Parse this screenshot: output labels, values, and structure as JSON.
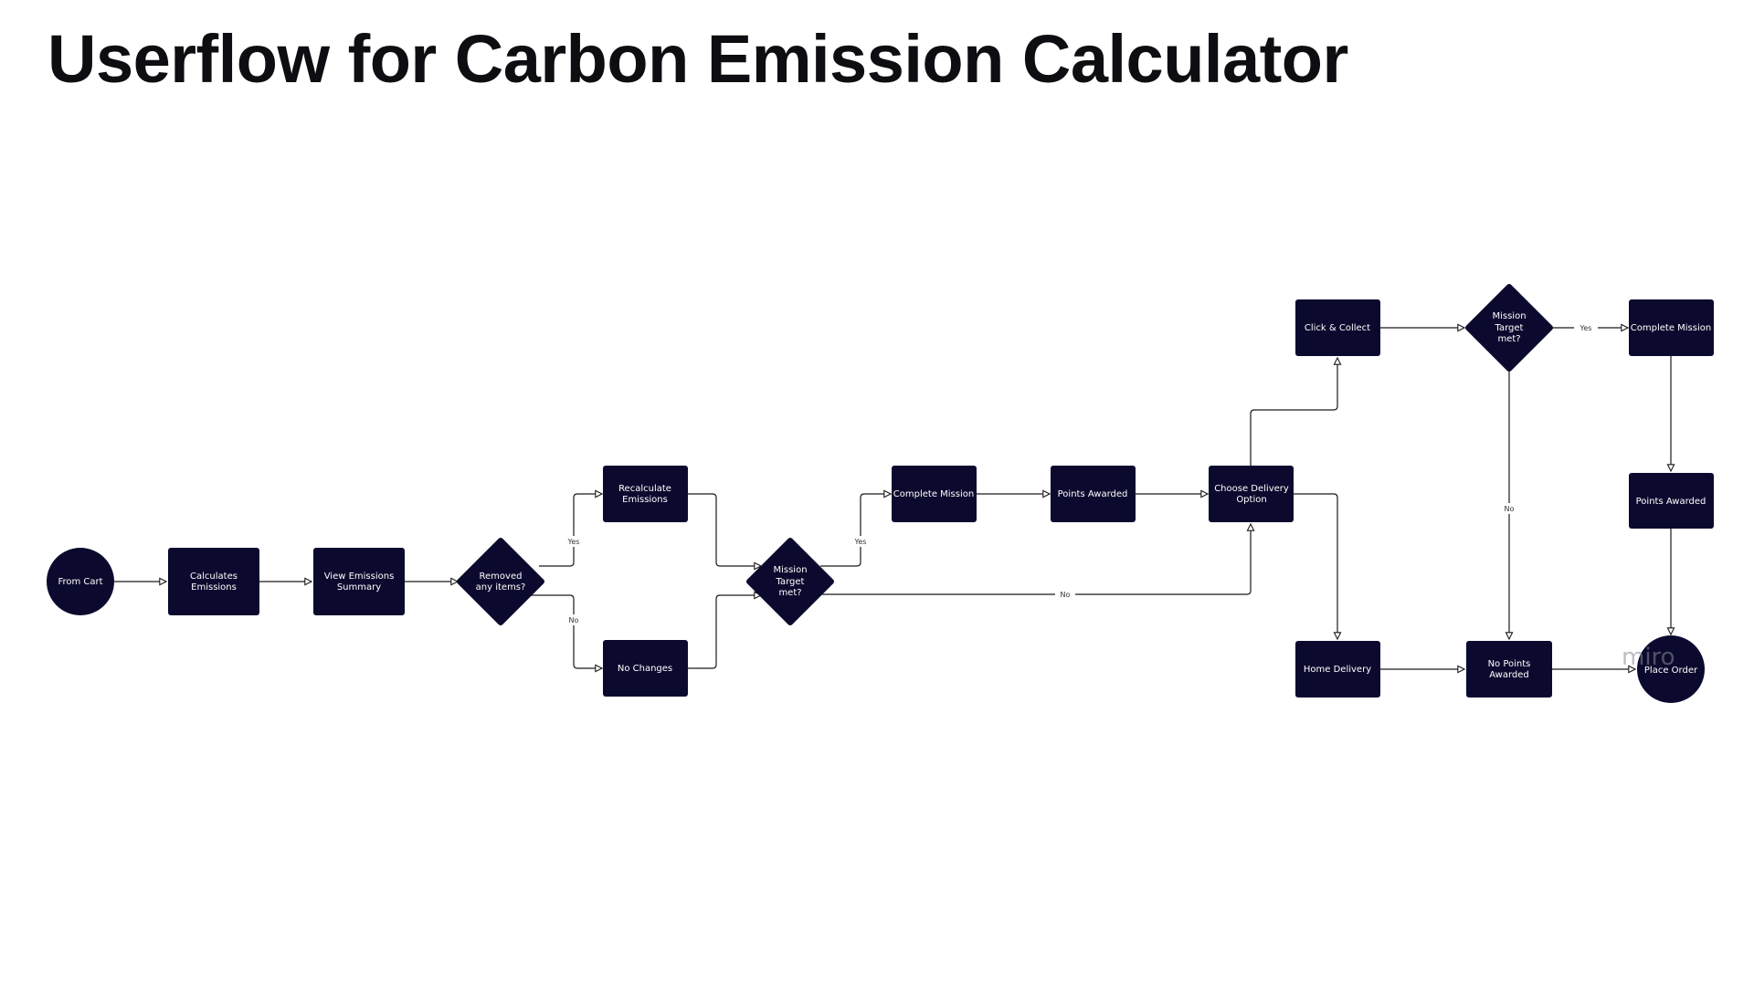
{
  "title": "Userflow for Carbon Emission Calculator",
  "nodes": {
    "from_cart": {
      "lines": [
        "From Cart"
      ]
    },
    "calculates": {
      "lines": [
        "Calculates",
        "Emissions"
      ]
    },
    "view_summary": {
      "lines": [
        "View Emissions",
        "Summary"
      ]
    },
    "removed_items": {
      "lines": [
        "Removed",
        "any items?"
      ]
    },
    "recalculate": {
      "lines": [
        "Recalculate",
        "Emissions"
      ]
    },
    "no_changes": {
      "lines": [
        "No Changes"
      ]
    },
    "target_1": {
      "lines": [
        "Mission",
        "Target",
        "met?"
      ]
    },
    "complete_1": {
      "lines": [
        "Complete Mission"
      ]
    },
    "points_1": {
      "lines": [
        "Points Awarded"
      ]
    },
    "delivery": {
      "lines": [
        "Choose Delivery",
        "Option"
      ]
    },
    "click_collect": {
      "lines": [
        "Click & Collect"
      ]
    },
    "home_delivery": {
      "lines": [
        "Home Delivery"
      ]
    },
    "target_2": {
      "lines": [
        "Mission",
        "Target",
        "met?"
      ]
    },
    "complete_2": {
      "lines": [
        "Complete Mission"
      ]
    },
    "points_2": {
      "lines": [
        "Points Awarded"
      ]
    },
    "no_points": {
      "lines": [
        "No Points",
        "Awarded"
      ]
    },
    "place_order": {
      "lines": [
        "Place Order"
      ]
    }
  },
  "edge_labels": {
    "yes_removed": "Yes",
    "no_removed": "No",
    "yes_target1": "Yes",
    "no_target1": "No",
    "yes_target2": "Yes",
    "no_target2": "No"
  },
  "watermark": "miro"
}
